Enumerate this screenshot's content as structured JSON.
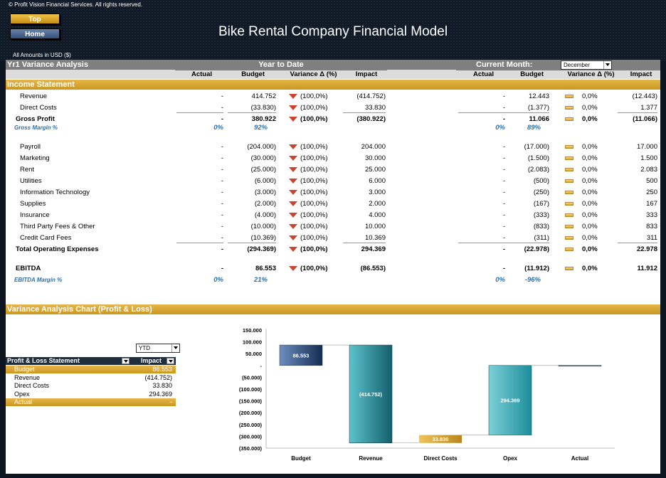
{
  "header": {
    "copyright": "© Profit Vision Financial Services. All rights reserved.",
    "top_button": "Top",
    "home_button": "Home",
    "title": "Bike Rental Company Financial Model",
    "amounts_note": "All Amounts in  USD ($)"
  },
  "variance": {
    "section_title": "Yr1 Variance Analysis",
    "ytd_title": "Year to Date",
    "cm_title": "Current Month:",
    "month_selected": "December",
    "columns": {
      "actual": "Actual",
      "budget": "Budget",
      "variance": "Variance Δ  (%)",
      "impact": "Impact"
    },
    "income_statement_label": "Income Statement"
  },
  "rows": [
    {
      "label": "Revenue",
      "bold": false,
      "ytd_actual": "-",
      "ytd_budget": "414.752",
      "ytd_var": "(100,0%)",
      "ytd_impact": "(414.752)",
      "cm_actual": "-",
      "cm_budget": "12.443",
      "cm_var": "0,0%",
      "cm_impact": "(12.443)"
    },
    {
      "label": "Direct Costs",
      "bold": false,
      "ytd_actual": "-",
      "ytd_budget": "(33.830)",
      "ytd_var": "(100,0%)",
      "ytd_impact": "33.830",
      "cm_actual": "-",
      "cm_budget": "(1.377)",
      "cm_var": "0,0%",
      "cm_impact": "1.377"
    },
    {
      "label": "Gross Profit",
      "bold": true,
      "ytd_actual": "-",
      "ytd_budget": "380.922",
      "ytd_var": "(100,0%)",
      "ytd_impact": "(380.922)",
      "cm_actual": "-",
      "cm_budget": "11.066",
      "cm_var": "0,0%",
      "cm_impact": "(11.066)"
    },
    {
      "label": "Payroll",
      "bold": false,
      "ytd_actual": "-",
      "ytd_budget": "(204.000)",
      "ytd_var": "(100,0%)",
      "ytd_impact": "204.000",
      "cm_actual": "-",
      "cm_budget": "(17.000)",
      "cm_var": "0,0%",
      "cm_impact": "17.000"
    },
    {
      "label": "Marketing",
      "bold": false,
      "ytd_actual": "-",
      "ytd_budget": "(30.000)",
      "ytd_var": "(100,0%)",
      "ytd_impact": "30.000",
      "cm_actual": "-",
      "cm_budget": "(1.500)",
      "cm_var": "0,0%",
      "cm_impact": "1.500"
    },
    {
      "label": "Rent",
      "bold": false,
      "ytd_actual": "-",
      "ytd_budget": "(25.000)",
      "ytd_var": "(100,0%)",
      "ytd_impact": "25.000",
      "cm_actual": "-",
      "cm_budget": "(2.083)",
      "cm_var": "0,0%",
      "cm_impact": "2.083"
    },
    {
      "label": "Utilities",
      "bold": false,
      "ytd_actual": "-",
      "ytd_budget": "(6.000)",
      "ytd_var": "(100,0%)",
      "ytd_impact": "6.000",
      "cm_actual": "-",
      "cm_budget": "(500)",
      "cm_var": "0,0%",
      "cm_impact": "500"
    },
    {
      "label": "Information Technology",
      "bold": false,
      "ytd_actual": "-",
      "ytd_budget": "(3.000)",
      "ytd_var": "(100,0%)",
      "ytd_impact": "3.000",
      "cm_actual": "-",
      "cm_budget": "(250)",
      "cm_var": "0,0%",
      "cm_impact": "250"
    },
    {
      "label": "Supplies",
      "bold": false,
      "ytd_actual": "-",
      "ytd_budget": "(2.000)",
      "ytd_var": "(100,0%)",
      "ytd_impact": "2.000",
      "cm_actual": "-",
      "cm_budget": "(167)",
      "cm_var": "0,0%",
      "cm_impact": "167"
    },
    {
      "label": "Insurance",
      "bold": false,
      "ytd_actual": "-",
      "ytd_budget": "(4.000)",
      "ytd_var": "(100,0%)",
      "ytd_impact": "4.000",
      "cm_actual": "-",
      "cm_budget": "(333)",
      "cm_var": "0,0%",
      "cm_impact": "333"
    },
    {
      "label": "Third Party Fees & Other",
      "bold": false,
      "ytd_actual": "-",
      "ytd_budget": "(10.000)",
      "ytd_var": "(100,0%)",
      "ytd_impact": "10.000",
      "cm_actual": "-",
      "cm_budget": "(833)",
      "cm_var": "0,0%",
      "cm_impact": "833"
    },
    {
      "label": "Credit Card Fees",
      "bold": false,
      "ytd_actual": "-",
      "ytd_budget": "(10.369)",
      "ytd_var": "(100,0%)",
      "ytd_impact": "10.369",
      "cm_actual": "-",
      "cm_budget": "(311)",
      "cm_var": "0,0%",
      "cm_impact": "311"
    },
    {
      "label": "Total Operating Expenses",
      "bold": true,
      "ytd_actual": "-",
      "ytd_budget": "(294.369)",
      "ytd_var": "(100,0%)",
      "ytd_impact": "294.369",
      "cm_actual": "-",
      "cm_budget": "(22.978)",
      "cm_var": "0,0%",
      "cm_impact": "22.978"
    },
    {
      "label": "EBITDA",
      "bold": true,
      "ytd_actual": "-",
      "ytd_budget": "86.553",
      "ytd_var": "(100,0%)",
      "ytd_impact": "(86.553)",
      "cm_actual": "-",
      "cm_budget": "(11.912)",
      "cm_var": "0,0%",
      "cm_impact": "11.912"
    }
  ],
  "margins": [
    {
      "label": "Gross Margin %",
      "ytd_actual": "0%",
      "ytd_budget": "92%",
      "cm_actual": "0%",
      "cm_budget": "89%"
    },
    {
      "label": "EBITDA Margin %",
      "ytd_actual": "0%",
      "ytd_budget": "21%",
      "cm_actual": "0%",
      "cm_budget": "-96%"
    }
  ],
  "chart_section": {
    "title": "Variance Analysis Chart (Profit & Loss)",
    "period_selected": "YTD"
  },
  "pl_table": {
    "header_label": "Profit & Loss Statement",
    "header_impact": "Impact",
    "rows": [
      {
        "label": "Budget",
        "value": "86.553",
        "highlight": true
      },
      {
        "label": "Revenue",
        "value": "(414.752)",
        "highlight": false
      },
      {
        "label": "Direct Costs",
        "value": "33.830",
        "highlight": false
      },
      {
        "label": "Opex",
        "value": "294.369",
        "highlight": false
      },
      {
        "label": "Actual",
        "value": "-",
        "highlight": true
      }
    ]
  },
  "chart_data": {
    "type": "bar",
    "subtype": "waterfall",
    "categories": [
      "Budget",
      "Revenue",
      "Direct Costs",
      "Opex",
      "Actual"
    ],
    "values": [
      86553,
      -414752,
      33830,
      294369,
      0
    ],
    "data_labels": [
      "86.553",
      "(414.752)",
      "33.830",
      "294.369",
      ""
    ],
    "ylim": [
      -350000,
      150000
    ],
    "ytick_values": [
      150000,
      100000,
      50000,
      0,
      -50000,
      -100000,
      -150000,
      -200000,
      -250000,
      -300000,
      -350000
    ],
    "ytick_labels": [
      "150.000",
      "100.000",
      "50.000",
      "-",
      "(50.000)",
      "(100.000)",
      "(150.000)",
      "(200.000)",
      "(250.000)",
      "(300.000)",
      "(350.000)"
    ],
    "colors": {
      "budget": "#1f3f6e",
      "revenue": "#1f8a96",
      "direct_costs": "#d4a22a",
      "opex": "#27a0ae",
      "actual": "#555555"
    }
  }
}
